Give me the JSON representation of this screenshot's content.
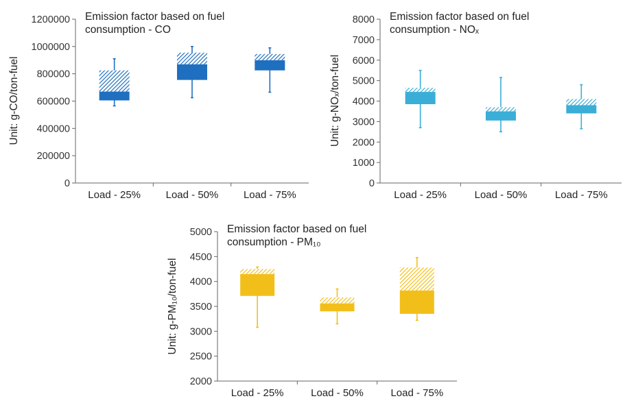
{
  "chart_data": [
    {
      "id": "co",
      "type": "boxplot",
      "title": [
        "Emission factor based on fuel",
        "consumption - CO"
      ],
      "ylabel": "Unit: g-CO/ton-fuel",
      "ylim": [
        0,
        1200000
      ],
      "yticks": [
        "0",
        "200000",
        "400000",
        "600000",
        "800000",
        "1000000",
        "1200000"
      ],
      "categories": [
        "Load - 25%",
        "Load - 50%",
        "Load - 75%"
      ],
      "color": "#1f6fc0",
      "boxes": [
        {
          "min": 565000,
          "q1": 605000,
          "median": 670000,
          "q3": 825000,
          "max": 910000
        },
        {
          "min": 625000,
          "q1": 755000,
          "median": 870000,
          "q3": 955000,
          "max": 1000000
        },
        {
          "min": 665000,
          "q1": 825000,
          "median": 900000,
          "q3": 945000,
          "max": 990000
        }
      ]
    },
    {
      "id": "nox",
      "type": "boxplot",
      "title": [
        "Emission factor based on fuel",
        "consumption - NOₓ"
      ],
      "ylabel": "Unit: g-NOₓ/ton-fuel",
      "ylim": [
        0,
        8000
      ],
      "yticks": [
        "0",
        "1000",
        "2000",
        "3000",
        "4000",
        "5000",
        "6000",
        "7000",
        "8000"
      ],
      "categories": [
        "Load - 25%",
        "Load - 50%",
        "Load - 75%"
      ],
      "color": "#3aaed6",
      "boxes": [
        {
          "min": 2700,
          "q1": 3850,
          "median": 4450,
          "q3": 4650,
          "max": 5500
        },
        {
          "min": 2500,
          "q1": 3050,
          "median": 3500,
          "q3": 3700,
          "max": 5150
        },
        {
          "min": 2650,
          "q1": 3400,
          "median": 3800,
          "q3": 4100,
          "max": 4800
        }
      ]
    },
    {
      "id": "pm10",
      "type": "boxplot",
      "title": [
        "Emission factor based on fuel",
        "consumption - PM₁₀"
      ],
      "ylabel": "Unit: g-PM₁₀/ton-fuel",
      "ylim": [
        2000,
        5000
      ],
      "yticks": [
        "2000",
        "2500",
        "3000",
        "3500",
        "4000",
        "4500",
        "5000"
      ],
      "categories": [
        "Load - 25%",
        "Load - 50%",
        "Load - 75%"
      ],
      "color": "#f2bf1a",
      "boxes": [
        {
          "min": 3080,
          "q1": 3710,
          "median": 4150,
          "q3": 4250,
          "max": 4290
        },
        {
          "min": 3150,
          "q1": 3400,
          "median": 3560,
          "q3": 3680,
          "max": 3850
        },
        {
          "min": 3220,
          "q1": 3350,
          "median": 3820,
          "q3": 4280,
          "max": 4480
        }
      ]
    }
  ]
}
